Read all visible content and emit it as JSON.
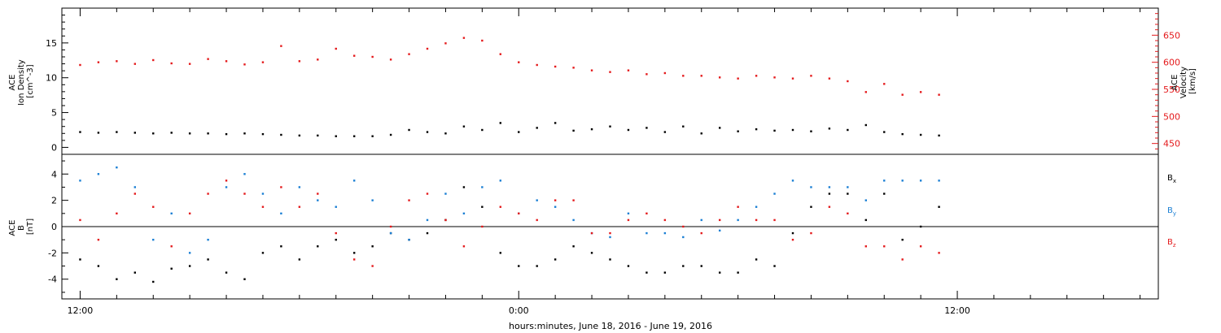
{
  "figure": {
    "xlabel": "hours:minutes, June 18, 2016 - June 19, 2016"
  },
  "colors": {
    "black": "#000000",
    "blue": "#1a7fd4",
    "red": "#e41a1c",
    "axis": "#000000"
  },
  "chart_data": [
    {
      "type": "scatter",
      "panel": "top",
      "xlabel": "hours:minutes, June 18, 2016 - June 19, 2016",
      "x_unit": "hours since 2016-06-18 00:00",
      "xlim": [
        11.5,
        41.5
      ],
      "x_tick_labels": [
        {
          "x": 12,
          "label": "12:00"
        },
        {
          "x": 24,
          "label": "0:00"
        },
        {
          "x": 36,
          "label": "12:00"
        }
      ],
      "left_axis": {
        "ylabel_lines": [
          "ACE",
          "Ion Density",
          "[cm^-3]"
        ],
        "ylim": [
          -1,
          20
        ],
        "ticks": [
          0,
          5,
          10,
          15
        ]
      },
      "right_axis": {
        "ylabel_lines": [
          "ACE",
          "Velocity",
          "[km/s]"
        ],
        "ylim": [
          430,
          700
        ],
        "ticks": [
          450,
          500,
          550,
          600,
          650
        ],
        "color": "#e41a1c"
      },
      "series": [
        {
          "axis": "left",
          "color": "#000000",
          "points": [
            [
              12.0,
              2.2
            ],
            [
              12.5,
              2.1
            ],
            [
              13.0,
              2.2
            ],
            [
              13.5,
              2.1
            ],
            [
              14.0,
              2.0
            ],
            [
              14.5,
              2.1
            ],
            [
              15.0,
              2.0
            ],
            [
              15.5,
              2.0
            ],
            [
              16.0,
              1.9
            ],
            [
              16.5,
              2.0
            ],
            [
              17.0,
              1.9
            ],
            [
              17.5,
              1.8
            ],
            [
              18.0,
              1.7
            ],
            [
              18.5,
              1.7
            ],
            [
              19.0,
              1.6
            ],
            [
              19.5,
              1.6
            ],
            [
              20.0,
              1.6
            ],
            [
              20.5,
              1.8
            ],
            [
              21.0,
              2.5
            ],
            [
              21.5,
              2.2
            ],
            [
              22.0,
              2.0
            ],
            [
              22.5,
              3.0
            ],
            [
              23.0,
              2.5
            ],
            [
              23.5,
              3.5
            ],
            [
              24.0,
              2.2
            ],
            [
              24.5,
              2.8
            ],
            [
              25.0,
              3.5
            ],
            [
              25.5,
              2.4
            ],
            [
              26.0,
              2.6
            ],
            [
              26.5,
              3.0
            ],
            [
              27.0,
              2.5
            ],
            [
              27.5,
              2.8
            ],
            [
              28.0,
              2.2
            ],
            [
              28.5,
              3.0
            ],
            [
              29.0,
              2.0
            ],
            [
              29.5,
              2.8
            ],
            [
              30.0,
              2.3
            ],
            [
              30.5,
              2.6
            ],
            [
              31.0,
              2.4
            ],
            [
              31.5,
              2.5
            ],
            [
              32.0,
              2.3
            ],
            [
              32.5,
              2.7
            ],
            [
              33.0,
              2.5
            ],
            [
              33.5,
              3.2
            ],
            [
              34.0,
              2.2
            ],
            [
              34.5,
              1.9
            ],
            [
              35.0,
              1.8
            ],
            [
              35.5,
              1.7
            ]
          ]
        },
        {
          "axis": "right",
          "color": "#e41a1c",
          "points": [
            [
              12.0,
              595
            ],
            [
              12.5,
              600
            ],
            [
              13.0,
              602
            ],
            [
              13.5,
              597
            ],
            [
              14.0,
              604
            ],
            [
              14.5,
              598
            ],
            [
              15.0,
              597
            ],
            [
              15.5,
              606
            ],
            [
              16.0,
              602
            ],
            [
              16.5,
              596
            ],
            [
              17.0,
              600
            ],
            [
              17.5,
              630
            ],
            [
              18.0,
              602
            ],
            [
              18.5,
              605
            ],
            [
              19.0,
              625
            ],
            [
              19.5,
              612
            ],
            [
              20.0,
              610
            ],
            [
              20.5,
              605
            ],
            [
              21.0,
              615
            ],
            [
              21.5,
              625
            ],
            [
              22.0,
              635
            ],
            [
              22.5,
              645
            ],
            [
              23.0,
              640
            ],
            [
              23.5,
              615
            ],
            [
              24.0,
              600
            ],
            [
              24.5,
              595
            ],
            [
              25.0,
              592
            ],
            [
              25.5,
              590
            ],
            [
              26.0,
              585
            ],
            [
              26.5,
              582
            ],
            [
              27.0,
              585
            ],
            [
              27.5,
              578
            ],
            [
              28.0,
              580
            ],
            [
              28.5,
              575
            ],
            [
              29.0,
              575
            ],
            [
              29.5,
              572
            ],
            [
              30.0,
              570
            ],
            [
              30.5,
              575
            ],
            [
              31.0,
              572
            ],
            [
              31.5,
              570
            ],
            [
              32.0,
              575
            ],
            [
              32.5,
              570
            ],
            [
              33.0,
              565
            ],
            [
              33.5,
              545
            ],
            [
              34.0,
              560
            ],
            [
              34.5,
              540
            ],
            [
              35.0,
              545
            ],
            [
              35.5,
              540
            ]
          ]
        }
      ]
    },
    {
      "type": "scatter",
      "panel": "bottom",
      "xlabel": "hours:minutes, June 18, 2016 - June 19, 2016",
      "x_unit": "hours since 2016-06-18 00:00",
      "xlim": [
        11.5,
        41.5
      ],
      "x_tick_labels": [
        {
          "x": 12,
          "label": "12:00"
        },
        {
          "x": 24,
          "label": "0:00"
        },
        {
          "x": 36,
          "label": "12:00"
        }
      ],
      "left_axis": {
        "ylabel_lines": [
          "ACE",
          "B",
          "[nT]"
        ],
        "ylim": [
          -5.5,
          5.5
        ],
        "ticks": [
          -4,
          -2,
          0,
          2,
          4
        ]
      },
      "zero_line": true,
      "legend": [
        {
          "label": "Bx",
          "base": "B",
          "sub": "x",
          "color": "#000000"
        },
        {
          "label": "By",
          "base": "B",
          "sub": "y",
          "color": "#1a7fd4"
        },
        {
          "label": "Bz",
          "base": "B",
          "sub": "z",
          "color": "#e41a1c"
        }
      ],
      "series": [
        {
          "name": "Bx",
          "color": "#000000",
          "points": [
            [
              12.0,
              -2.5
            ],
            [
              12.5,
              -3.0
            ],
            [
              13.0,
              -4.0
            ],
            [
              13.5,
              -3.5
            ],
            [
              14.0,
              -4.2
            ],
            [
              14.5,
              -3.2
            ],
            [
              15.0,
              -3.0
            ],
            [
              15.5,
              -2.5
            ],
            [
              16.0,
              -3.5
            ],
            [
              16.5,
              -4.0
            ],
            [
              17.0,
              -2.0
            ],
            [
              17.5,
              -1.5
            ],
            [
              18.0,
              -2.5
            ],
            [
              18.5,
              -1.5
            ],
            [
              19.0,
              -1.0
            ],
            [
              19.5,
              -2.0
            ],
            [
              20.0,
              -1.5
            ],
            [
              20.5,
              -0.5
            ],
            [
              21.0,
              -1.0
            ],
            [
              21.5,
              -0.5
            ],
            [
              22.0,
              0.5
            ],
            [
              22.5,
              3.0
            ],
            [
              23.0,
              1.5
            ],
            [
              23.5,
              -2.0
            ],
            [
              24.0,
              -3.0
            ],
            [
              24.5,
              -3.0
            ],
            [
              25.0,
              -2.5
            ],
            [
              25.5,
              -1.5
            ],
            [
              26.0,
              -2.0
            ],
            [
              26.5,
              -2.5
            ],
            [
              27.0,
              -3.0
            ],
            [
              27.5,
              -3.5
            ],
            [
              28.0,
              -3.5
            ],
            [
              28.5,
              -3.0
            ],
            [
              29.0,
              -3.0
            ],
            [
              29.5,
              -3.5
            ],
            [
              30.0,
              -3.5
            ],
            [
              30.5,
              -2.5
            ],
            [
              31.0,
              -3.0
            ],
            [
              31.5,
              -0.5
            ],
            [
              32.0,
              1.5
            ],
            [
              32.5,
              2.5
            ],
            [
              33.0,
              2.5
            ],
            [
              33.5,
              0.5
            ],
            [
              34.0,
              2.5
            ],
            [
              34.5,
              -1.0
            ],
            [
              35.0,
              0.0
            ],
            [
              35.5,
              1.5
            ]
          ]
        },
        {
          "name": "By",
          "color": "#1a7fd4",
          "points": [
            [
              12.0,
              3.5
            ],
            [
              12.5,
              4.0
            ],
            [
              13.0,
              4.5
            ],
            [
              13.5,
              3.0
            ],
            [
              14.0,
              -1.0
            ],
            [
              14.5,
              1.0
            ],
            [
              15.0,
              -2.0
            ],
            [
              15.5,
              -1.0
            ],
            [
              16.0,
              3.0
            ],
            [
              16.5,
              4.0
            ],
            [
              17.0,
              2.5
            ],
            [
              17.5,
              1.0
            ],
            [
              18.0,
              3.0
            ],
            [
              18.5,
              2.0
            ],
            [
              19.0,
              1.5
            ],
            [
              19.5,
              3.5
            ],
            [
              20.0,
              2.0
            ],
            [
              20.5,
              -0.5
            ],
            [
              21.0,
              -1.0
            ],
            [
              21.5,
              0.5
            ],
            [
              22.0,
              2.5
            ],
            [
              22.5,
              1.0
            ],
            [
              23.0,
              3.0
            ],
            [
              23.5,
              3.5
            ],
            [
              24.0,
              1.0
            ],
            [
              24.5,
              2.0
            ],
            [
              25.0,
              1.5
            ],
            [
              25.5,
              0.5
            ],
            [
              26.0,
              -0.5
            ],
            [
              26.5,
              -0.8
            ],
            [
              27.0,
              1.0
            ],
            [
              27.5,
              -0.5
            ],
            [
              28.0,
              -0.5
            ],
            [
              28.5,
              -0.8
            ],
            [
              29.0,
              0.5
            ],
            [
              29.5,
              -0.3
            ],
            [
              30.0,
              0.5
            ],
            [
              30.5,
              1.5
            ],
            [
              31.0,
              2.5
            ],
            [
              31.5,
              3.5
            ],
            [
              32.0,
              3.0
            ],
            [
              32.5,
              3.0
            ],
            [
              33.0,
              3.0
            ],
            [
              33.5,
              2.0
            ],
            [
              34.0,
              3.5
            ],
            [
              34.5,
              3.5
            ],
            [
              35.0,
              3.5
            ],
            [
              35.5,
              3.5
            ]
          ]
        },
        {
          "name": "Bz",
          "color": "#e41a1c",
          "points": [
            [
              12.0,
              0.5
            ],
            [
              12.5,
              -1.0
            ],
            [
              13.0,
              1.0
            ],
            [
              13.5,
              2.5
            ],
            [
              14.0,
              1.5
            ],
            [
              14.5,
              -1.5
            ],
            [
              15.0,
              1.0
            ],
            [
              15.5,
              2.5
            ],
            [
              16.0,
              3.5
            ],
            [
              16.5,
              2.5
            ],
            [
              17.0,
              1.5
            ],
            [
              17.5,
              3.0
            ],
            [
              18.0,
              1.5
            ],
            [
              18.5,
              2.5
            ],
            [
              19.0,
              -0.5
            ],
            [
              19.5,
              -2.5
            ],
            [
              20.0,
              -3.0
            ],
            [
              20.5,
              0.0
            ],
            [
              21.0,
              2.0
            ],
            [
              21.5,
              2.5
            ],
            [
              22.0,
              0.5
            ],
            [
              22.5,
              -1.5
            ],
            [
              23.0,
              0.0
            ],
            [
              23.5,
              1.5
            ],
            [
              24.0,
              1.0
            ],
            [
              24.5,
              0.5
            ],
            [
              25.0,
              2.0
            ],
            [
              25.5,
              2.0
            ],
            [
              26.0,
              -0.5
            ],
            [
              26.5,
              -0.5
            ],
            [
              27.0,
              0.5
            ],
            [
              27.5,
              1.0
            ],
            [
              28.0,
              0.5
            ],
            [
              28.5,
              0.0
            ],
            [
              29.0,
              -0.5
            ],
            [
              29.5,
              0.5
            ],
            [
              30.0,
              1.5
            ],
            [
              30.5,
              0.5
            ],
            [
              31.0,
              0.5
            ],
            [
              31.5,
              -1.0
            ],
            [
              32.0,
              -0.5
            ],
            [
              32.5,
              1.5
            ],
            [
              33.0,
              1.0
            ],
            [
              33.5,
              -1.5
            ],
            [
              34.0,
              -1.5
            ],
            [
              34.5,
              -2.5
            ],
            [
              35.0,
              -1.5
            ],
            [
              35.5,
              -2.0
            ]
          ]
        }
      ]
    }
  ]
}
